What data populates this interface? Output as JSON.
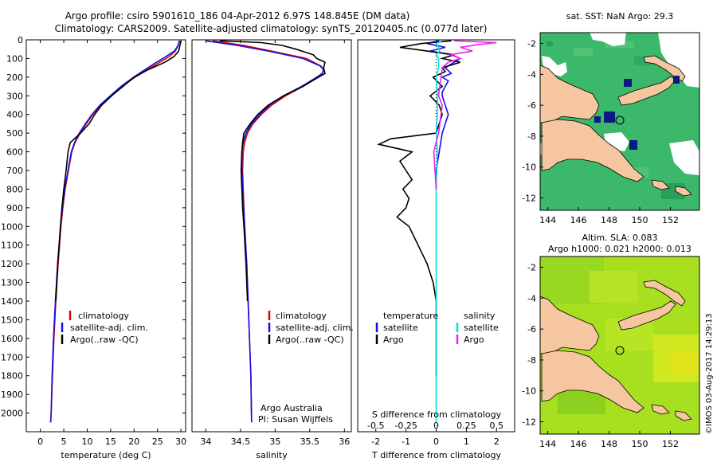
{
  "title": {
    "line1": "Argo profile: csiro 5901610_186 04-Apr-2012 6.97S 148.845E (DM data)",
    "line2": "Climatology: CARS2009. Satellite-adjusted climatology: synTS_20120405.nc (0.077d later)"
  },
  "colors": {
    "climatology": "#e00000",
    "satellite": "#1010ee",
    "argo": "#000000",
    "salinity_satellite": "#00e0e0",
    "salinity_argo": "#ee20ee",
    "land": "#f5c6a0",
    "ocean_sst": "#3cb86a",
    "ocean_sla": "#a8e020",
    "missing": "#ffffff",
    "flag": "#0a1a80"
  },
  "chart_data": [
    {
      "type": "line",
      "name": "temperature-profile",
      "xlabel": "temperature (deg C)",
      "ylabel": "",
      "xlim": [
        -3,
        31
      ],
      "ylim": [
        2100,
        0
      ],
      "x_ticks": [
        "0",
        "5",
        "10",
        "15",
        "20",
        "25",
        "30"
      ],
      "x_tick_values": [
        0,
        5,
        10,
        15,
        20,
        25,
        30
      ],
      "y_ticks": [
        "0",
        "100",
        "200",
        "300",
        "400",
        "500",
        "600",
        "700",
        "800",
        "900",
        "1000",
        "1100",
        "1200",
        "1300",
        "1400",
        "1500",
        "1600",
        "1700",
        "1800",
        "1900",
        "2000"
      ],
      "y_tick_values": [
        0,
        100,
        200,
        300,
        400,
        500,
        600,
        700,
        800,
        900,
        1000,
        1100,
        1200,
        1300,
        1400,
        1500,
        1600,
        1700,
        1800,
        1900,
        2000
      ],
      "legend": [
        "climatology",
        "satellite-adj. clim.",
        "Argo(..raw -QC)"
      ],
      "legend_position": "lower-center",
      "series": [
        {
          "name": "climatology",
          "color": "#e00000",
          "depth": [
            5,
            30,
            60,
            90,
            120,
            160,
            200,
            250,
            300,
            350,
            400,
            450,
            500,
            550,
            600,
            700,
            800,
            900,
            1000,
            1200,
            1400,
            1600,
            1800,
            2000,
            2050
          ],
          "values": [
            29.6,
            29.4,
            28.8,
            27.5,
            25.5,
            22.8,
            20.2,
            17.4,
            15.0,
            12.9,
            11.2,
            9.8,
            8.5,
            7.4,
            6.7,
            6.0,
            5.3,
            4.8,
            4.4,
            3.8,
            3.3,
            2.9,
            2.6,
            2.3,
            2.2
          ]
        },
        {
          "name": "satellite-adj. clim.",
          "color": "#1010ee",
          "depth": [
            5,
            30,
            60,
            90,
            120,
            160,
            200,
            250,
            300,
            350,
            400,
            450,
            500,
            550,
            600,
            700,
            800,
            900,
            1000,
            1200,
            1400,
            1600,
            1800,
            2000,
            2050
          ],
          "values": [
            29.7,
            29.4,
            28.6,
            26.8,
            24.8,
            22.3,
            19.9,
            17.2,
            14.9,
            12.7,
            11.0,
            9.6,
            8.3,
            7.3,
            6.6,
            5.9,
            5.2,
            4.7,
            4.3,
            3.7,
            3.2,
            2.8,
            2.5,
            2.3,
            2.2
          ]
        },
        {
          "name": "Argo",
          "color": "#000000",
          "depth": [
            5,
            30,
            60,
            90,
            120,
            160,
            200,
            250,
            300,
            350,
            400,
            450,
            500,
            550,
            600,
            700,
            800,
            900,
            1000,
            1100,
            1200,
            1300,
            1400
          ],
          "values": [
            30.0,
            29.8,
            29.5,
            28.5,
            26.6,
            23.0,
            20.0,
            17.6,
            15.2,
            13.1,
            11.6,
            10.4,
            8.6,
            6.4,
            5.9,
            5.5,
            5.0,
            4.6,
            4.3,
            4.0,
            3.7,
            3.5,
            3.3
          ]
        }
      ]
    },
    {
      "type": "line",
      "name": "salinity-profile",
      "xlabel": "salinity",
      "xlim": [
        33.8,
        36.1
      ],
      "ylim": [
        2100,
        0
      ],
      "x_ticks": [
        "34",
        "34.5",
        "35",
        "35.5",
        "36"
      ],
      "x_tick_values": [
        34,
        34.5,
        35,
        35.5,
        36
      ],
      "legend": [
        "climatology",
        "satellite-adj. clim.",
        "Argo(..raw -QC)"
      ],
      "legend_position": "lower-right",
      "annotation": [
        "Argo Australia",
        "PI: Susan Wijffels"
      ],
      "series": [
        {
          "name": "climatology",
          "color": "#e00000",
          "depth": [
            5,
            30,
            60,
            100,
            140,
            160,
            180,
            200,
            250,
            300,
            350,
            400,
            450,
            500,
            550,
            600,
            700,
            800,
            1000,
            1200,
            1500,
            1800,
            2050
          ],
          "values": [
            34.1,
            34.55,
            34.95,
            35.45,
            35.66,
            35.7,
            35.68,
            35.62,
            35.4,
            35.15,
            34.95,
            34.8,
            34.68,
            34.6,
            34.56,
            34.54,
            34.53,
            34.54,
            34.56,
            34.59,
            34.62,
            34.65,
            34.66
          ]
        },
        {
          "name": "satellite-adj. clim.",
          "color": "#1010ee",
          "depth": [
            5,
            30,
            60,
            100,
            140,
            160,
            180,
            200,
            250,
            300,
            350,
            400,
            450,
            500,
            550,
            600,
            700,
            800,
            1000,
            1200,
            1500,
            1800,
            2050
          ],
          "values": [
            34.0,
            34.45,
            34.9,
            35.4,
            35.65,
            35.7,
            35.68,
            35.6,
            35.38,
            35.12,
            34.92,
            34.78,
            34.66,
            34.58,
            34.54,
            34.52,
            34.52,
            34.53,
            34.56,
            34.59,
            34.62,
            34.65,
            34.66
          ]
        },
        {
          "name": "Argo",
          "color": "#000000",
          "depth": [
            5,
            15,
            30,
            50,
            80,
            100,
            120,
            150,
            180,
            210,
            250,
            300,
            350,
            400,
            450,
            500,
            550,
            600,
            700,
            800,
            900,
            1000,
            1200,
            1400
          ],
          "values": [
            34.2,
            34.8,
            35.1,
            35.3,
            35.55,
            35.6,
            35.72,
            35.7,
            35.72,
            35.58,
            35.4,
            35.12,
            34.9,
            34.75,
            34.64,
            34.55,
            34.53,
            34.52,
            34.51,
            34.52,
            34.53,
            34.55,
            34.58,
            34.6
          ]
        }
      ]
    },
    {
      "type": "line",
      "name": "difference-profile",
      "xlabel": "T difference from climatology",
      "xlabel_top": "S difference from climatology",
      "xlim": [
        -2.6,
        2.6
      ],
      "ylim": [
        2100,
        0
      ],
      "x_ticks": [
        "-2",
        "-1",
        "0",
        "1",
        "2"
      ],
      "x_tick_values": [
        -2,
        -1,
        0,
        1,
        2
      ],
      "s_ticks": [
        "-0.5",
        "-0.25",
        "0",
        "0.25",
        "0.5"
      ],
      "legend_temperature": {
        "heading": "temperature",
        "items": [
          "satellite",
          "Argo"
        ]
      },
      "legend_salinity": {
        "heading": "salinity",
        "items": [
          "satellite",
          "Argo"
        ]
      },
      "series": [
        {
          "name": "temperature satellite",
          "color": "#1010ee",
          "depth": [
            5,
            20,
            40,
            60,
            80,
            100,
            120,
            150,
            180,
            200,
            220,
            250,
            280,
            300,
            350,
            400,
            450,
            500,
            600,
            700,
            800
          ],
          "values": [
            0.1,
            -0.3,
            0.3,
            -0.2,
            0.5,
            0.8,
            0.6,
            0.3,
            0.5,
            0.2,
            0.4,
            0.3,
            0.2,
            0.2,
            0.3,
            0.4,
            0.3,
            0.2,
            0.1,
            0.0,
            0.0
          ]
        },
        {
          "name": "temperature Argo",
          "color": "#000000",
          "depth": [
            5,
            20,
            40,
            60,
            80,
            100,
            120,
            150,
            170,
            200,
            250,
            300,
            350,
            400,
            450,
            500,
            530,
            560,
            600,
            650,
            700,
            750,
            800,
            850,
            900,
            950,
            1000,
            1100,
            1200,
            1300,
            1400,
            1500,
            1600,
            1700,
            1800
          ],
          "values": [
            0.5,
            -0.5,
            -1.2,
            -0.3,
            0.6,
            0.2,
            0.8,
            0.2,
            0.3,
            -0.1,
            0.2,
            -0.2,
            0.1,
            0.2,
            0.1,
            0.0,
            -1.5,
            -1.9,
            -0.8,
            -1.2,
            -1.0,
            -0.8,
            -1.1,
            -0.9,
            -1.0,
            -1.3,
            -0.9,
            -0.6,
            -0.3,
            -0.1,
            0.0,
            0.0,
            0.0,
            0.0,
            0.0
          ]
        },
        {
          "name": "salinity satellite",
          "color": "#00e0e0",
          "depth": [
            5,
            20,
            40,
            60,
            80,
            100,
            150,
            200,
            300,
            400,
            500,
            600,
            800,
            1000,
            1200,
            1400,
            1600,
            1800,
            2000,
            2050
          ],
          "s_values": [
            0.05,
            0.0,
            0.02,
            0.03,
            0.0,
            0.02,
            0.02,
            0.0,
            0.01,
            0.01,
            0.0,
            0.01,
            0.0,
            0.0,
            0.0,
            0.0,
            0.0,
            0.0,
            0.0,
            0.0
          ]
        },
        {
          "name": "salinity Argo",
          "color": "#ee20ee",
          "depth": [
            5,
            15,
            25,
            40,
            60,
            80,
            100,
            120,
            150,
            200,
            250,
            300,
            350,
            400,
            500,
            600,
            700,
            800
          ],
          "s_values": [
            0.15,
            0.5,
            0.35,
            0.2,
            0.3,
            0.12,
            0.2,
            0.1,
            0.05,
            0.04,
            0.03,
            0.02,
            0.05,
            0.04,
            0.02,
            -0.02,
            -0.01,
            0.0
          ]
        }
      ]
    },
    {
      "type": "heatmap",
      "name": "sst-map",
      "title": "sat. SST: NaN Argo: 29.3",
      "x_ticks": [
        "144",
        "146",
        "148",
        "150",
        "152"
      ],
      "y_ticks": [
        "-2",
        "-4",
        "-6",
        "-8",
        "-10",
        "-12"
      ],
      "xlim": [
        143.5,
        153.9
      ],
      "ylim": [
        -12.8,
        -1.3
      ]
    },
    {
      "type": "heatmap",
      "name": "sla-map",
      "title_line1": "Altim. SLA: 0.083",
      "title_line2": "Argo h1000: 0.021 h2000: 0.013",
      "x_ticks": [
        "144",
        "146",
        "148",
        "150",
        "152"
      ],
      "y_ticks": [
        "-2",
        "-4",
        "-6",
        "-8",
        "-10",
        "-12"
      ],
      "xlim": [
        143.5,
        153.9
      ],
      "ylim": [
        -12.8,
        -1.3
      ],
      "credit": "©IMOS 03-Aug-2017 14:29:13"
    }
  ]
}
